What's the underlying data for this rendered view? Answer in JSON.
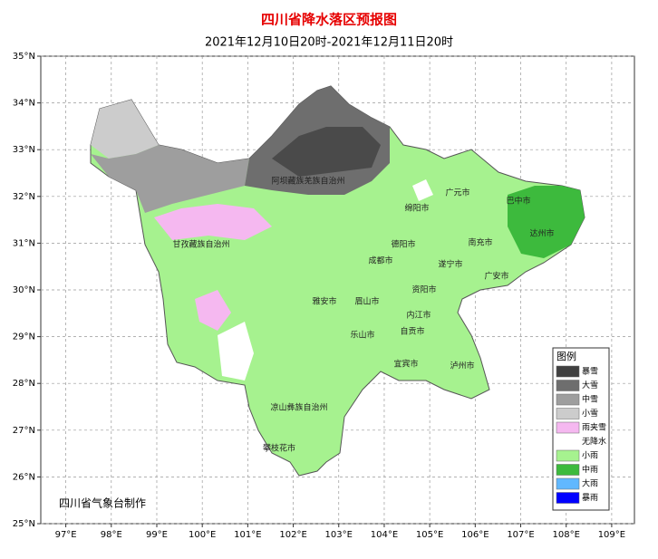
{
  "header": {
    "title": "四川省降水落区预报图",
    "subtitle": "2021年12月10日20时-2021年12月11日20时"
  },
  "map": {
    "lat_range": [
      25,
      35
    ],
    "lon_range": [
      96.45,
      109.5
    ],
    "lat_ticks": [
      {
        "value": 25,
        "label": "25°N"
      },
      {
        "value": 26,
        "label": "26°N"
      },
      {
        "value": 27,
        "label": "27°N"
      },
      {
        "value": 28,
        "label": "28°N"
      },
      {
        "value": 29,
        "label": "29°N"
      },
      {
        "value": 30,
        "label": "30°N"
      },
      {
        "value": 31,
        "label": "31°N"
      },
      {
        "value": 32,
        "label": "32°N"
      },
      {
        "value": 33,
        "label": "33°N"
      },
      {
        "value": 34,
        "label": "34°N"
      },
      {
        "value": 35,
        "label": "35°N"
      }
    ],
    "lon_ticks": [
      {
        "value": 97,
        "label": "97°E"
      },
      {
        "value": 98,
        "label": "98°E"
      },
      {
        "value": 99,
        "label": "99°E"
      },
      {
        "value": 100,
        "label": "100°E"
      },
      {
        "value": 101,
        "label": "101°E"
      },
      {
        "value": 102,
        "label": "102°E"
      },
      {
        "value": 103,
        "label": "103°E"
      },
      {
        "value": 104,
        "label": "104°E"
      },
      {
        "value": 105,
        "label": "105°E"
      },
      {
        "value": 106,
        "label": "106°E"
      },
      {
        "value": 107,
        "label": "107°E"
      },
      {
        "value": 108,
        "label": "108°E"
      },
      {
        "value": 109,
        "label": "109°E"
      }
    ],
    "cities": [
      "阿坝藏族羌族自治州",
      "广元市",
      "巴中市",
      "绵阳市",
      "甘孜藏族自治州",
      "德阳市",
      "南充市",
      "达州市",
      "成都市",
      "遂宁市",
      "广安市",
      "雅安市",
      "眉山市",
      "资阳市",
      "内江市",
      "乐山市",
      "自贡市",
      "宜宾市",
      "泸州市",
      "凉山彝族自治州",
      "攀枝花市"
    ]
  },
  "legend": {
    "title": "图例",
    "items": [
      {
        "label": "暴雪",
        "color": "#404040"
      },
      {
        "label": "大雪",
        "color": "#6e6e6e"
      },
      {
        "label": "中雪",
        "color": "#9e9e9e"
      },
      {
        "label": "小雪",
        "color": "#cccccc"
      },
      {
        "label": "雨夹雪",
        "color": "#f5b8f0"
      },
      {
        "label": "无降水",
        "color": "#ffffff"
      },
      {
        "label": "小雨",
        "color": "#a6f28f"
      },
      {
        "label": "中雨",
        "color": "#3dba3d"
      },
      {
        "label": "大雨",
        "color": "#61b8ff"
      },
      {
        "label": "暴雨",
        "color": "#0000ff"
      }
    ]
  },
  "credit": "四川省气象台制作"
}
